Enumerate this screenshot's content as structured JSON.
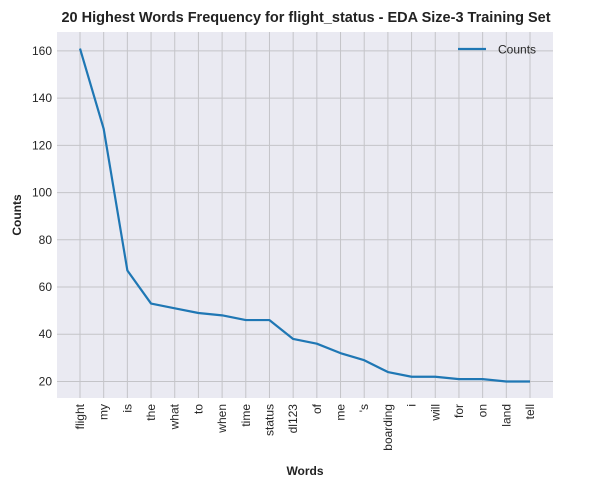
{
  "chart_data": {
    "type": "line",
    "title": "20 Highest Words Frequency for flight_status - EDA Size-3 Training Set",
    "xlabel": "Words",
    "ylabel": "Counts",
    "categories": [
      "flight",
      "my",
      "is",
      "the",
      "what",
      "to",
      "when",
      "time",
      "status",
      "dl123",
      "of",
      "me",
      "'s",
      "boarding",
      "i",
      "will",
      "for",
      "on",
      "land",
      "tell"
    ],
    "series": [
      {
        "name": "Counts",
        "values": [
          161,
          127,
          67,
          53,
          51,
          49,
          48,
          46,
          46,
          38,
          36,
          32,
          29,
          24,
          22,
          22,
          21,
          21,
          20,
          20
        ],
        "color": "#1f77b4"
      }
    ],
    "ylim": [
      13,
      168
    ],
    "yticks": [
      20,
      40,
      60,
      80,
      100,
      120,
      140,
      160
    ],
    "grid": true,
    "legend": "top-right",
    "background": "#eaeaf2"
  }
}
